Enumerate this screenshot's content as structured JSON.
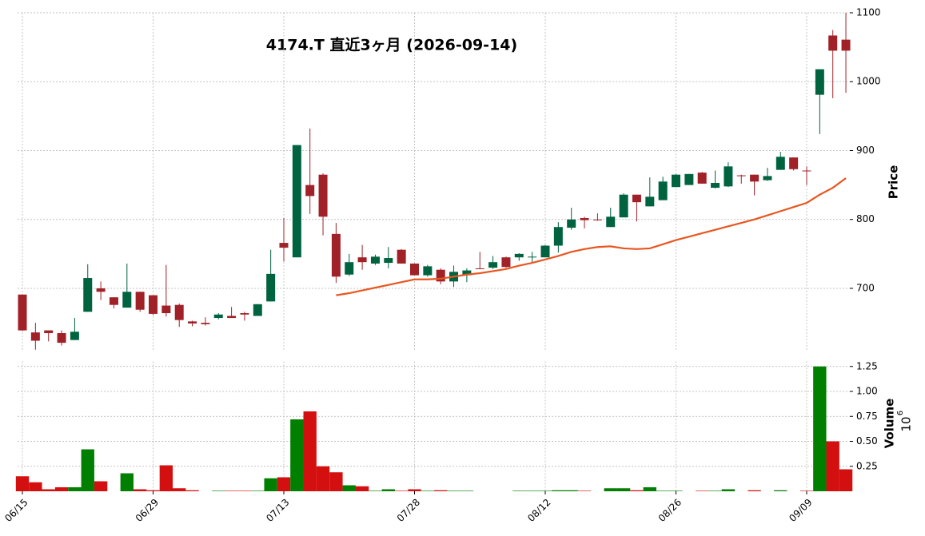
{
  "chart_data": {
    "type": "candlestick",
    "title": "4174.T  直近3ヶ月  (2026-09-14)",
    "categories": [
      "06/15",
      null,
      null,
      null,
      null,
      null,
      null,
      null,
      null,
      null,
      "06/29",
      null,
      null,
      null,
      null,
      null,
      null,
      null,
      null,
      null,
      "07/13",
      null,
      null,
      null,
      null,
      null,
      null,
      null,
      null,
      null,
      "07/28",
      null,
      null,
      null,
      null,
      null,
      null,
      null,
      null,
      null,
      "08/12",
      null,
      null,
      null,
      null,
      null,
      null,
      null,
      null,
      null,
      "08/26",
      null,
      null,
      null,
      null,
      null,
      null,
      null,
      null,
      null,
      "09/09",
      null,
      null,
      null
    ],
    "open": [
      691,
      636,
      639,
      635,
      625,
      666,
      700,
      687,
      672,
      695,
      690,
      675,
      676,
      652,
      650,
      657,
      660,
      664,
      660,
      681,
      766,
      745,
      850,
      865,
      779,
      720,
      745,
      736,
      737,
      756,
      736,
      719,
      727,
      710,
      719,
      729,
      730,
      745,
      745,
      746,
      745,
      762,
      788,
      802,
      800,
      789,
      803,
      836,
      819,
      828,
      847,
      850,
      868,
      846,
      848,
      864,
      865,
      857,
      872,
      890,
      871,
      981,
      1067,
      1061
    ],
    "high": [
      691,
      650,
      639,
      639,
      657,
      735,
      710,
      687,
      736,
      695,
      690,
      734,
      678,
      653,
      658,
      664,
      673,
      666,
      677,
      756,
      802,
      908,
      932,
      867,
      795,
      750,
      763,
      749,
      760,
      757,
      736,
      734,
      729,
      733,
      729,
      753,
      747,
      746,
      751,
      753,
      763,
      796,
      817,
      804,
      809,
      817,
      838,
      836,
      861,
      862,
      866,
      866,
      869,
      871,
      883,
      865,
      865,
      875,
      898,
      890,
      877,
      1018,
      1075,
      1100
    ],
    "low": [
      638,
      611,
      623,
      617,
      625,
      666,
      683,
      671,
      672,
      666,
      661,
      659,
      644,
      645,
      646,
      655,
      657,
      653,
      660,
      681,
      739,
      745,
      808,
      777,
      708,
      718,
      727,
      734,
      729,
      736,
      719,
      717,
      706,
      702,
      709,
      728,
      728,
      730,
      740,
      738,
      745,
      752,
      785,
      787,
      798,
      789,
      803,
      797,
      819,
      828,
      847,
      850,
      852,
      845,
      847,
      852,
      835,
      856,
      872,
      871,
      850,
      924,
      976,
      984
    ],
    "close": [
      639,
      624,
      635,
      621,
      637,
      715,
      695,
      676,
      695,
      669,
      663,
      664,
      654,
      649,
      648,
      662,
      657,
      662,
      677,
      721,
      759,
      908,
      834,
      804,
      717,
      738,
      738,
      746,
      744,
      736,
      719,
      732,
      710,
      724,
      726,
      728,
      738,
      731,
      750,
      746,
      762,
      789,
      800,
      799,
      799,
      804,
      836,
      825,
      833,
      855,
      865,
      866,
      852,
      853,
      877,
      863,
      855,
      863,
      891,
      873,
      870,
      1018,
      1045,
      1045
    ],
    "up_color": "#006340",
    "down_color": "#a02128",
    "moving_average": {
      "color": "#e8561f",
      "values": [
        null,
        null,
        null,
        null,
        null,
        null,
        null,
        null,
        null,
        null,
        null,
        null,
        null,
        null,
        null,
        null,
        null,
        null,
        null,
        null,
        null,
        null,
        null,
        null,
        690,
        693,
        697,
        701,
        705,
        709,
        713,
        713,
        714,
        717,
        720,
        722,
        725,
        728,
        733,
        737,
        742,
        747,
        753,
        757,
        760,
        761,
        758,
        757,
        758,
        764,
        770,
        775,
        780,
        785,
        790,
        795,
        800,
        806,
        812,
        818,
        824,
        836,
        846,
        860
      ]
    },
    "ylabel": "Price",
    "ylim": [
      610,
      1100
    ],
    "yticks": [
      700,
      800,
      900,
      1000,
      1100
    ],
    "grid": true,
    "volume": {
      "values": [
        0.15,
        0.09,
        0.02,
        0.04,
        0.04,
        0.42,
        0.1,
        0,
        0.18,
        0.02,
        0.01,
        0.26,
        0.03,
        0.01,
        0,
        0.005,
        0.005,
        0.005,
        0.005,
        0.13,
        0.14,
        0.72,
        0.8,
        0.25,
        0.19,
        0.06,
        0.05,
        0.005,
        0.02,
        0.005,
        0.02,
        0.005,
        0.01,
        0.005,
        0.005,
        0,
        0,
        0,
        0.005,
        0.005,
        0.005,
        0.01,
        0.01,
        0.005,
        0,
        0.03,
        0.03,
        0.01,
        0.04,
        0.005,
        0.005,
        0,
        0.005,
        0.005,
        0.02,
        0,
        0.01,
        0,
        0.01,
        0,
        0.005,
        1.25,
        0.5,
        0.22
      ],
      "up_color": "#007f00",
      "down_color": "#d40f0f",
      "ylabel": "Volume",
      "offset_label": {
        "base": "10",
        "exponent": "6"
      },
      "ylim": [
        0,
        1.3
      ],
      "yticks": [
        0.25,
        {
          "value": 0.5,
          "label": "0.50"
        },
        0.75,
        {
          "value": 1,
          "label": "1.00"
        },
        1.25
      ]
    }
  }
}
